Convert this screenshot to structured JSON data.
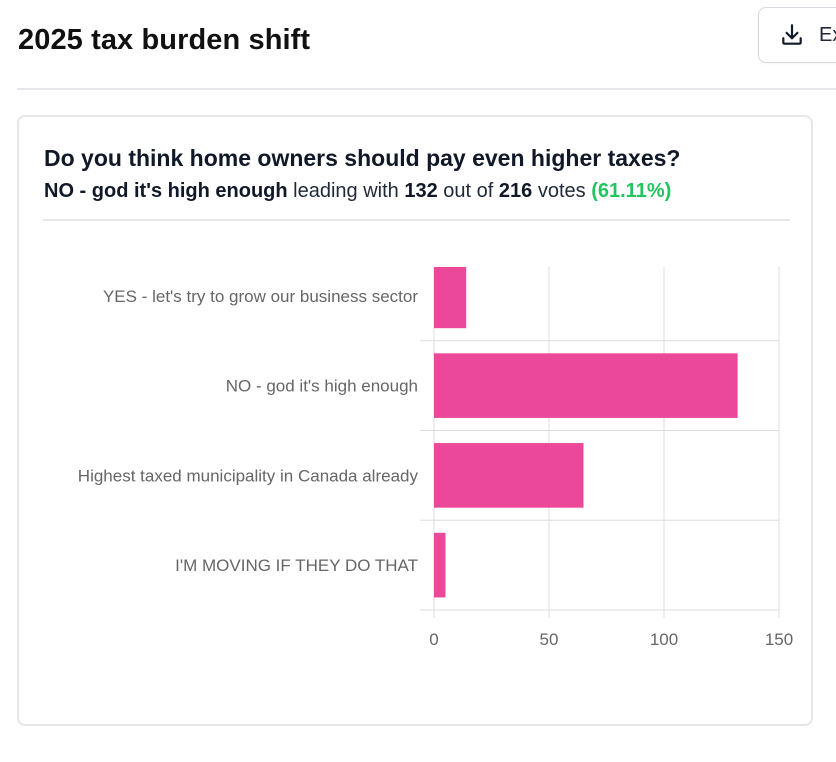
{
  "header": {
    "title": "2025 tax burden shift",
    "export_label": "Ex"
  },
  "poll": {
    "question": "Do you think home owners should pay even higher taxes?",
    "leading_option": "NO - god it's high enough",
    "leading_text": "leading with",
    "leading_votes": "132",
    "out_of_text": "out of",
    "total_votes": "216",
    "votes_text": "votes",
    "leading_percent": "(61.11%)"
  },
  "colors": {
    "bar": "#ec4899",
    "percent": "#22c55e",
    "grid": "#dddddd",
    "label": "#666666"
  },
  "chart_data": {
    "type": "bar",
    "orientation": "horizontal",
    "categories": [
      "YES - let's try to grow our business sector",
      "NO - god it's high enough",
      "Highest taxed municipality in Canada already",
      "I'M MOVING IF THEY DO THAT"
    ],
    "values": [
      14,
      132,
      65,
      5
    ],
    "xlim": [
      0,
      150
    ],
    "xticks": [
      0,
      50,
      100,
      150
    ],
    "grid": true,
    "legend": "none",
    "title": "",
    "xlabel": "",
    "ylabel": ""
  }
}
